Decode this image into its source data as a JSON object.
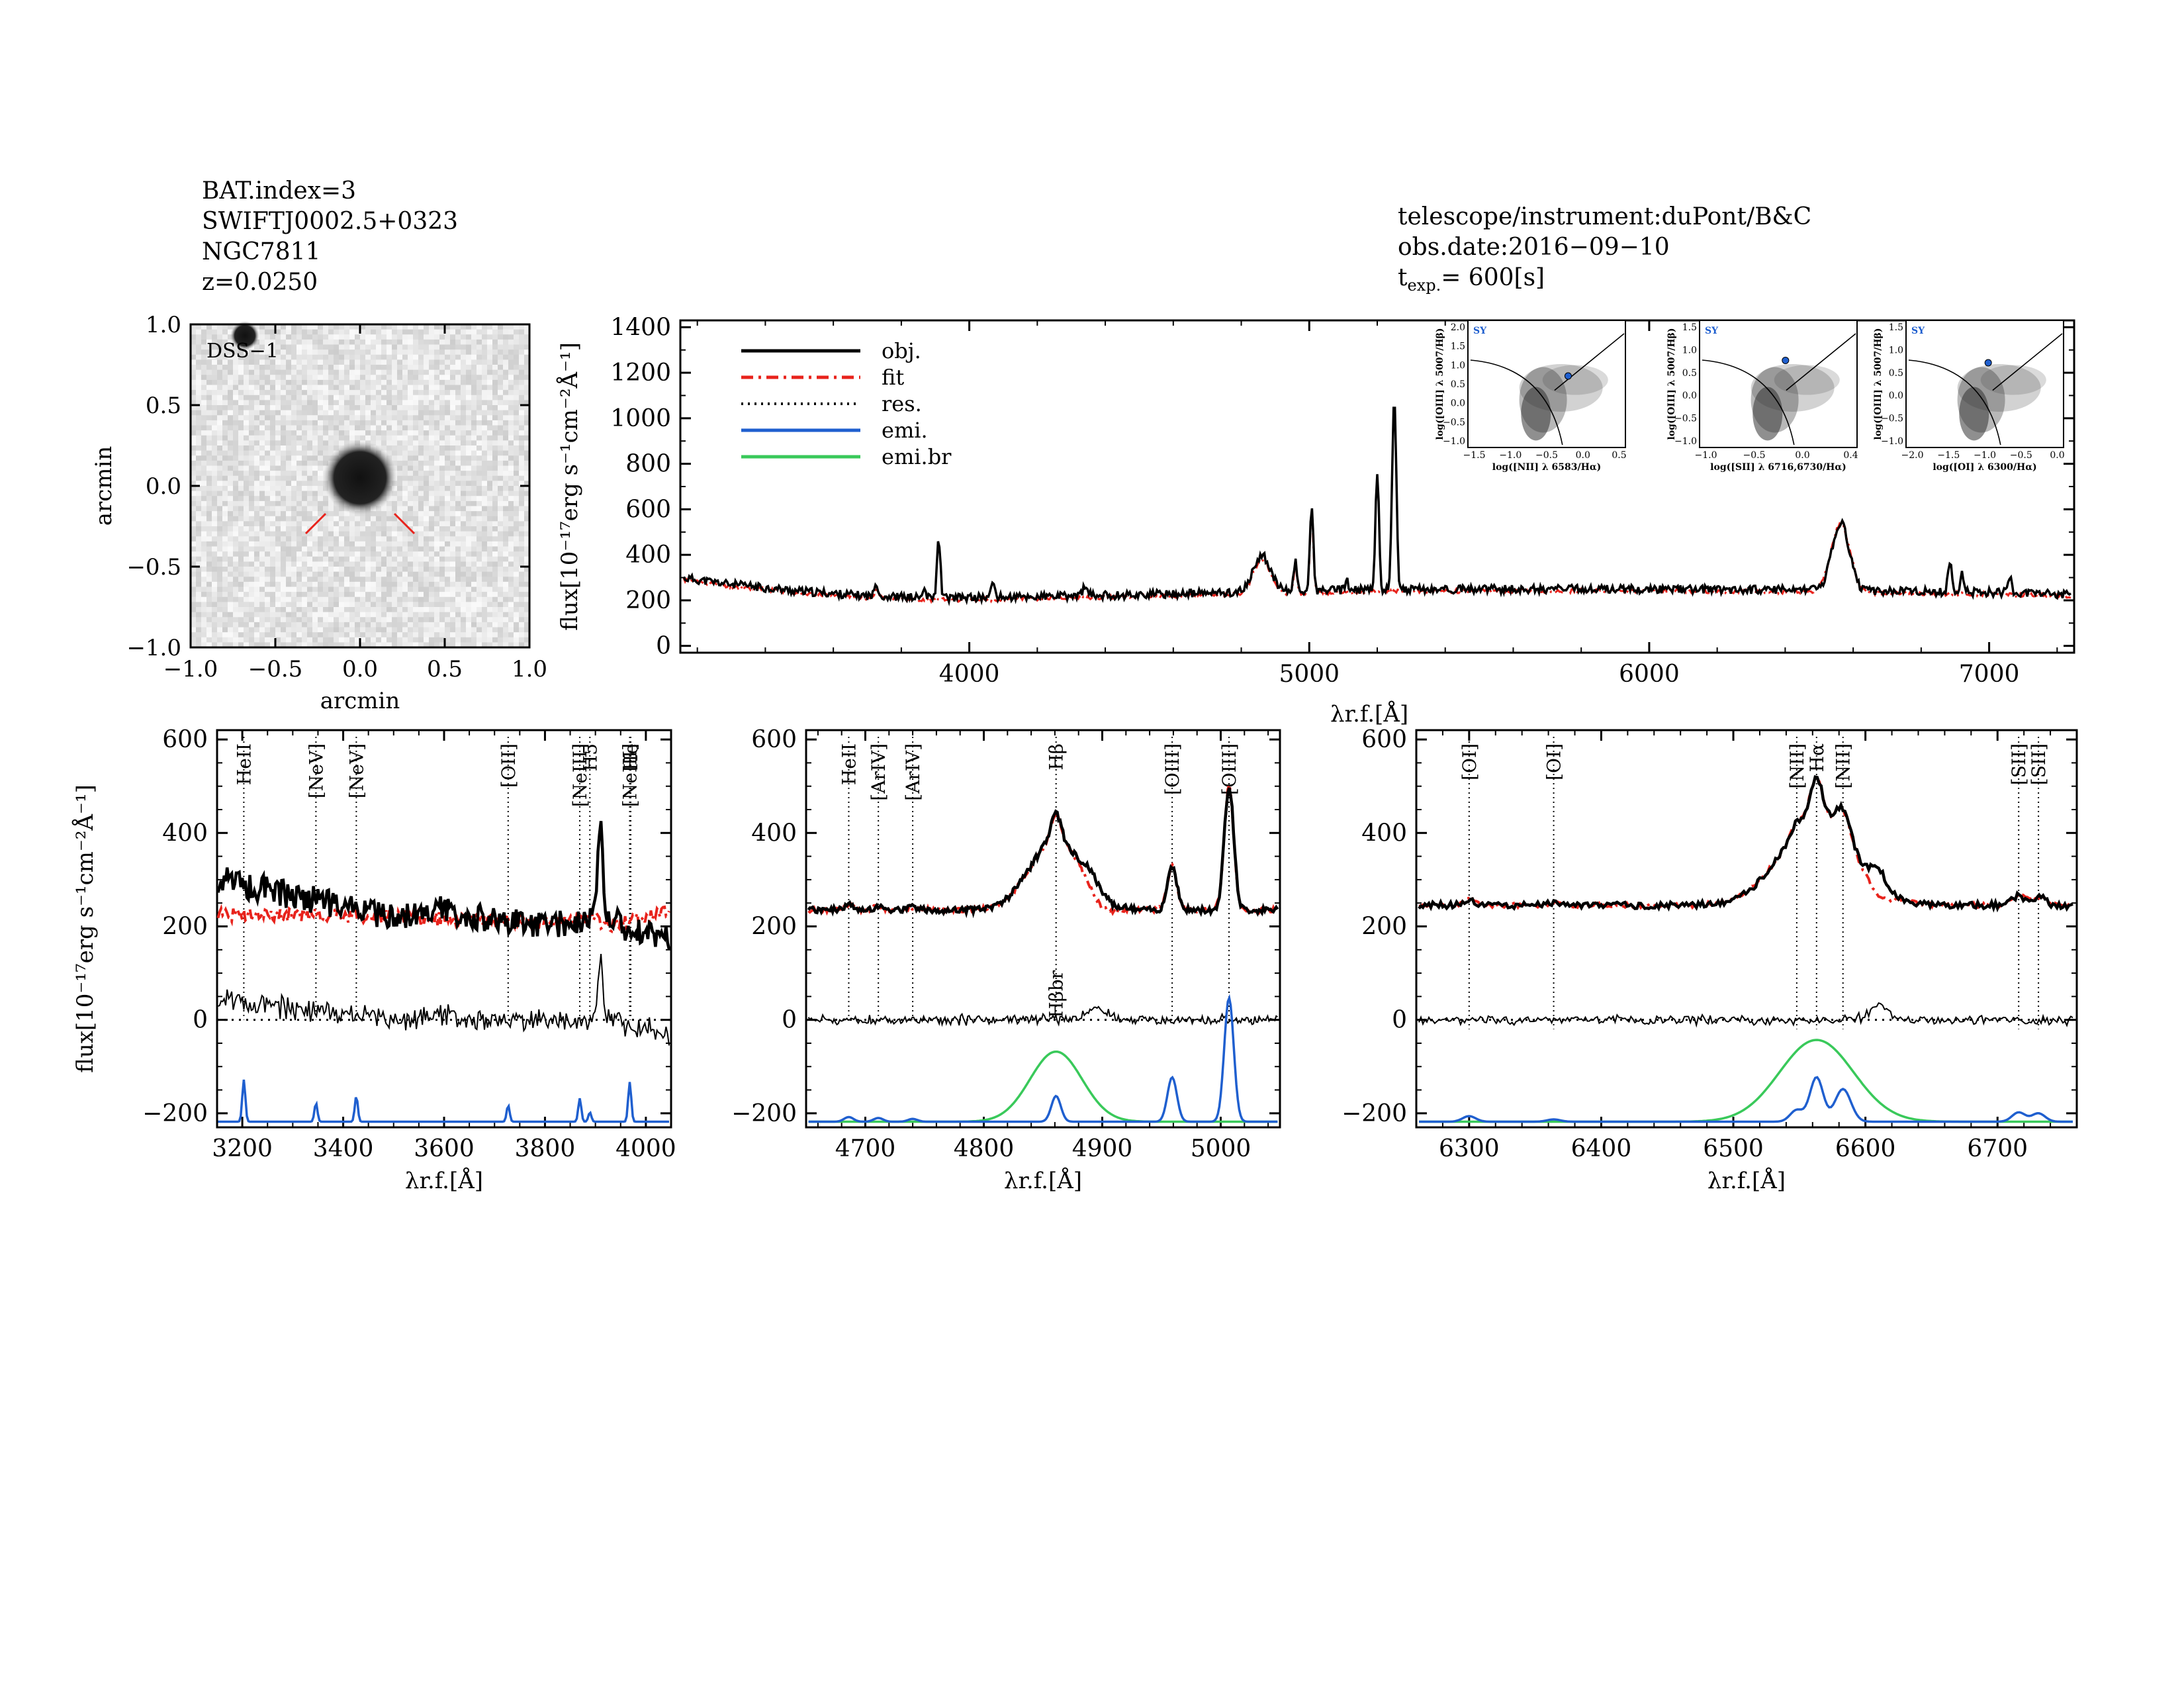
{
  "header_left": {
    "line1": "BAT.index=3",
    "line2": "SWIFTJ0002.5+0323",
    "line3": "NGC7811",
    "line4": "z=0.0250"
  },
  "header_right": {
    "line1": "telescope/instrument:duPont/B&C",
    "line2": "obs.date:2016−09−10",
    "texp_label": "t",
    "texp_sub": "exp.",
    "texp_value": "= 600[s]"
  },
  "colors": {
    "obj": "#000000",
    "fit": "#e8231c",
    "res": "#000000",
    "emi": "#1f5fcf",
    "emi_br": "#39c95a"
  },
  "chart_data": [
    {
      "type": "image",
      "id": "dss",
      "label": "DSS−1",
      "xlabel": "arcmin",
      "ylabel": "arcmin",
      "xlim": [
        -1.0,
        1.0
      ],
      "ylim": [
        -1.0,
        1.0
      ],
      "xticks": [
        "−1.0",
        "−0.5",
        "0.0",
        "0.5",
        "1.0"
      ],
      "yticks": [
        "1.0",
        "0.5",
        "0.0",
        "−0.5",
        "−1.0"
      ],
      "sources": [
        {
          "x": 0.0,
          "y": 0.05,
          "size": "large"
        },
        {
          "x": -0.68,
          "y": 0.93,
          "size": "small"
        }
      ]
    },
    {
      "type": "line",
      "id": "full",
      "xlabel": "λr.f.[Å]",
      "ylabel": "flux[10⁻¹⁷erg s⁻¹cm⁻²Å⁻¹]",
      "xlim": [
        3150,
        7250
      ],
      "ylim": [
        -30,
        1430
      ],
      "xticks": [
        4000,
        5000,
        6000,
        7000
      ],
      "yticks": [
        0,
        200,
        400,
        600,
        800,
        1000,
        1200,
        1400
      ],
      "legend": [
        "obj.",
        "fit",
        "res.",
        "emi.",
        "emi.br"
      ],
      "continuum": [
        [
          3150,
          300
        ],
        [
          3300,
          270
        ],
        [
          3500,
          240
        ],
        [
          3700,
          220
        ],
        [
          3900,
          210
        ],
        [
          4200,
          215
        ],
        [
          4500,
          225
        ],
        [
          4800,
          235
        ],
        [
          5100,
          245
        ],
        [
          5400,
          248
        ],
        [
          5800,
          250
        ],
        [
          6200,
          248
        ],
        [
          6450,
          245
        ],
        [
          6700,
          240
        ],
        [
          7000,
          235
        ],
        [
          7250,
          225
        ]
      ],
      "lines": [
        {
          "x": 3727,
          "amp": 60,
          "w": 5
        },
        {
          "x": 3868,
          "amp": 40,
          "w": 4
        },
        {
          "x": 3910,
          "amp": 260,
          "w": 5
        },
        {
          "x": 4070,
          "amp": 70,
          "w": 5
        },
        {
          "x": 4340,
          "amp": 35,
          "w": 8
        },
        {
          "x": 4861,
          "amp": 160,
          "w": 25
        },
        {
          "x": 4959,
          "amp": 130,
          "w": 5
        },
        {
          "x": 5007,
          "amp": 370,
          "w": 5
        },
        {
          "x": 5110,
          "amp": 50,
          "w": 4
        },
        {
          "x": 5200,
          "amp": 520,
          "w": 5
        },
        {
          "x": 5250,
          "amp": 860,
          "w": 6
        },
        {
          "x": 6563,
          "amp": 300,
          "w": 25
        },
        {
          "x": 6885,
          "amp": 120,
          "w": 6
        },
        {
          "x": 6920,
          "amp": 80,
          "w": 5
        },
        {
          "x": 7060,
          "amp": 70,
          "w": 6
        }
      ],
      "insets": [
        {
          "xlabel": "log([NII] λ 6583/Hα)",
          "ylabel": "log([OIII] λ 5007/Hβ)",
          "xticks": [
            "−1.5",
            "−1.0",
            "−0.5",
            "0.0",
            "0.5"
          ],
          "yticks": [
            "2.0",
            "1.5",
            "1.0",
            "0.5",
            "0.0",
            "−0.5",
            "−1.0"
          ],
          "tag": "SY",
          "point": [
            -0.2,
            0.7
          ],
          "xlim": [
            -1.6,
            0.6
          ],
          "ylim": [
            -1.1,
            2.1
          ]
        },
        {
          "xlabel": "log([SII] λ 6716,6730/Hα)",
          "ylabel": "log([OIII] λ 5007/Hβ)",
          "xticks": [
            "−1.0",
            "−0.5",
            "0.0",
            "0.4"
          ],
          "yticks": [
            "1.5",
            "1.0",
            "0.5",
            "0.0",
            "−0.5",
            "−1.0"
          ],
          "tag": "SY",
          "point": [
            -0.3,
            0.75
          ],
          "xlim": [
            -1.2,
            0.45
          ],
          "ylim": [
            -1.1,
            1.6
          ]
        },
        {
          "xlabel": "log([OI] λ 6300/Hα)",
          "ylabel": "log([OIII] λ 5007/Hβ)",
          "xticks": [
            "−2.0",
            "−1.5",
            "−1.0",
            "−0.5",
            "0.0"
          ],
          "yticks": [
            "1.5",
            "1.0",
            "0.5",
            "0.0",
            "−0.5",
            "−1.0"
          ],
          "tag": "SY",
          "point": [
            -1.0,
            0.7
          ],
          "xlim": [
            -2.2,
            0.1
          ],
          "ylim": [
            -1.1,
            1.6
          ]
        }
      ]
    },
    {
      "type": "line",
      "id": "zoom_blue",
      "xlabel": "λr.f.[Å]",
      "ylabel": "flux[10⁻¹⁷erg s⁻¹cm⁻²Å⁻¹]",
      "xlim": [
        3150,
        4050
      ],
      "ylim": [
        -230,
        620
      ],
      "xticks": [
        3200,
        3400,
        3600,
        3800,
        4000
      ],
      "yticks": [
        -200,
        0,
        200,
        400,
        600
      ],
      "labels": [
        {
          "text": "HeII",
          "x": 3203
        },
        {
          "text": "[NeV]",
          "x": 3346
        },
        {
          "text": "[NeV]",
          "x": 3426
        },
        {
          "text": "[OII]",
          "x": 3727
        },
        {
          "text": "[NeIII]",
          "x": 3869
        },
        {
          "text": "H5",
          "x": 3889
        },
        {
          "text": "He",
          "x": 3970
        },
        {
          "text": "[NeIII]",
          "x": 3968
        }
      ],
      "obj": [
        [
          3150,
          300
        ],
        [
          3200,
          290
        ],
        [
          3250,
          280
        ],
        [
          3300,
          265
        ],
        [
          3350,
          255
        ],
        [
          3400,
          240
        ],
        [
          3450,
          230
        ],
        [
          3500,
          225
        ],
        [
          3550,
          220
        ],
        [
          3600,
          240
        ],
        [
          3650,
          220
        ],
        [
          3700,
          215
        ],
        [
          3750,
          205
        ],
        [
          3800,
          210
        ],
        [
          3850,
          205
        ],
        [
          3880,
          220
        ],
        [
          3900,
          240
        ],
        [
          3910,
          460
        ],
        [
          3920,
          230
        ],
        [
          3950,
          200
        ],
        [
          4000,
          180
        ],
        [
          4050,
          170
        ]
      ],
      "fit": [
        [
          3150,
          225
        ],
        [
          3300,
          225
        ],
        [
          3500,
          220
        ],
        [
          3700,
          212
        ],
        [
          3850,
          210
        ],
        [
          3900,
          220
        ],
        [
          3920,
          200
        ],
        [
          3960,
          210
        ],
        [
          4050,
          230
        ]
      ],
      "emi_peaks": [
        [
          3203,
          90
        ],
        [
          3346,
          40
        ],
        [
          3426,
          55
        ],
        [
          3727,
          35
        ],
        [
          3869,
          50
        ],
        [
          3889,
          20
        ],
        [
          3968,
          85
        ]
      ]
    },
    {
      "type": "line",
      "id": "zoom_hbeta",
      "xlabel": "λr.f.[Å]",
      "ylabel": "",
      "xlim": [
        4650,
        5050
      ],
      "ylim": [
        -230,
        620
      ],
      "xticks": [
        4700,
        4800,
        4900,
        5000
      ],
      "yticks": [
        -200,
        0,
        200,
        400,
        600
      ],
      "labels": [
        {
          "text": "HeII",
          "x": 4686
        },
        {
          "text": "[ArIV]",
          "x": 4711
        },
        {
          "text": "[ArIV]",
          "x": 4740
        },
        {
          "text": "Hβ",
          "x": 4861
        },
        {
          "text": "[OIII]",
          "x": 4959
        },
        {
          "text": "[OIII]",
          "x": 5007
        }
      ],
      "broad_label": "Hβbr",
      "continuum": 235,
      "broad": {
        "x": 4861,
        "amp": 150,
        "w": 22
      },
      "narrow": [
        [
          4686,
          10,
          4
        ],
        [
          4711,
          8,
          4
        ],
        [
          4740,
          6,
          4
        ],
        [
          4861,
          55,
          4
        ],
        [
          4959,
          95,
          4
        ],
        [
          5007,
          265,
          4
        ]
      ]
    },
    {
      "type": "line",
      "id": "zoom_halpha",
      "xlabel": "λr.f.[Å]",
      "ylabel": "",
      "xlim": [
        6260,
        6760
      ],
      "ylim": [
        -230,
        620
      ],
      "xticks": [
        6300,
        6400,
        6500,
        6600,
        6700
      ],
      "yticks": [
        -200,
        0,
        200,
        400,
        600
      ],
      "labels": [
        {
          "text": "[OI]",
          "x": 6300
        },
        {
          "text": "[OI]",
          "x": 6364
        },
        {
          "text": "[NII]",
          "x": 6548
        },
        {
          "text": "Hα",
          "x": 6563
        },
        {
          "text": "[NII]",
          "x": 6583
        },
        {
          "text": "[SII]",
          "x": 6716
        },
        {
          "text": "[SII]",
          "x": 6731
        }
      ],
      "continuum": 245,
      "broad": {
        "x": 6563,
        "amp": 175,
        "w": 28
      },
      "narrow": [
        [
          6300,
          12,
          5
        ],
        [
          6364,
          5,
          5
        ],
        [
          6548,
          25,
          5
        ],
        [
          6563,
          95,
          5
        ],
        [
          6583,
          70,
          6
        ],
        [
          6716,
          20,
          5
        ],
        [
          6731,
          18,
          5
        ]
      ]
    }
  ]
}
